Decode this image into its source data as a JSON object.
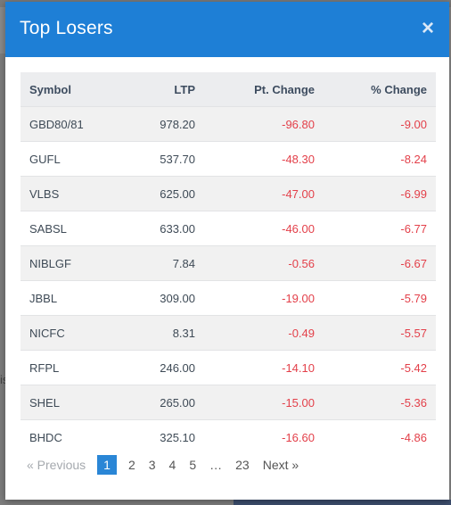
{
  "modal": {
    "title": "Top Losers",
    "close_glyph": "×"
  },
  "table": {
    "headers": {
      "symbol": "Symbol",
      "ltp": "LTP",
      "pt_change": "Pt. Change",
      "pct_change": "% Change"
    },
    "rows": [
      {
        "symbol": "GBD80/81",
        "ltp": "978.20",
        "pt": "-96.80",
        "pct": "-9.00"
      },
      {
        "symbol": "GUFL",
        "ltp": "537.70",
        "pt": "-48.30",
        "pct": "-8.24"
      },
      {
        "symbol": "VLBS",
        "ltp": "625.00",
        "pt": "-47.00",
        "pct": "-6.99"
      },
      {
        "symbol": "SABSL",
        "ltp": "633.00",
        "pt": "-46.00",
        "pct": "-6.77"
      },
      {
        "symbol": "NIBLGF",
        "ltp": "7.84",
        "pt": "-0.56",
        "pct": "-6.67"
      },
      {
        "symbol": "JBBL",
        "ltp": "309.00",
        "pt": "-19.00",
        "pct": "-5.79"
      },
      {
        "symbol": "NICFC",
        "ltp": "8.31",
        "pt": "-0.49",
        "pct": "-5.57"
      },
      {
        "symbol": "RFPL",
        "ltp": "246.00",
        "pt": "-14.10",
        "pct": "-5.42"
      },
      {
        "symbol": "SHEL",
        "ltp": "265.00",
        "pt": "-15.00",
        "pct": "-5.36"
      },
      {
        "symbol": "BHDC",
        "ltp": "325.10",
        "pt": "-16.60",
        "pct": "-4.86"
      }
    ]
  },
  "pagination": {
    "previous": "« Previous",
    "pages": [
      "1",
      "2",
      "3",
      "4",
      "5"
    ],
    "ellipsis": "…",
    "last": "23",
    "next": "Next »",
    "active_page": "1"
  },
  "background": {
    "left_text": "is"
  },
  "colors": {
    "header_blue": "#1e7fd6",
    "negative_red": "#e3404a",
    "active_page": "#2a86d6"
  }
}
